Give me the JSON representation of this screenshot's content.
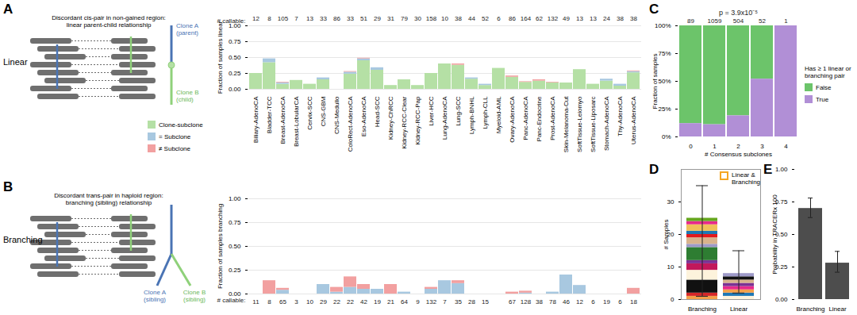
{
  "chart_data": [
    {
      "panel": "A",
      "type": "bar",
      "stacked": true,
      "diagram": {
        "label": "Linear",
        "caption": "Discordant cis-pair in non-gained region: linear parent-child relationship",
        "clones": [
          "Clone A (parent)",
          "Clone B (child)"
        ]
      },
      "ylabel": "Fraction of samples linear",
      "categories": [
        "Biliary-AdenoCA",
        "Bladder-TCC",
        "Breast-AdenoCA",
        "Breast-LobularCA",
        "Cervix-SCC",
        "CNS-GBM",
        "CNS-Medullo",
        "ColoRect-AdenoCA",
        "Eso-AdenoCA",
        "Head-SCC",
        "Kidney-ChRCC",
        "Kidney-RCC-Clear",
        "Kidney-RCC-Pap",
        "Liver-HCC",
        "Lung-AdenoCA",
        "Lung-SCC",
        "Lymph-BNHL",
        "Lymph-CLL",
        "Myeloid-AML",
        "Ovary-AdenoCA",
        "Panc-AdenoCA",
        "Panc-Endocrine",
        "Prost-AdenoCA",
        "Skin-Melanoma-Cut",
        "SoftTissue-Leiomyo",
        "SoftTissue-Liposarc",
        "Stomach-AdenoCA",
        "Thy-AdenoCA",
        "Uterus-AdenoCA"
      ],
      "series": [
        {
          "name": "Clone-subclone",
          "color": "#b5e0a5",
          "values": [
            0.25,
            0.42,
            0.08,
            0.14,
            0.08,
            0.15,
            0,
            0.24,
            0.45,
            0.3,
            0.06,
            0.15,
            0.06,
            0.25,
            0.4,
            0.38,
            0.16,
            0.06,
            0.33,
            0.19,
            0.11,
            0.13,
            0.1,
            0.1,
            0.31,
            0.08,
            0.13,
            0.05,
            0.26
          ]
        },
        {
          "name": "= Subclone",
          "color": "#a8c8e0",
          "values": [
            0,
            0.06,
            0.02,
            0,
            0,
            0.03,
            0,
            0.03,
            0.03,
            0.04,
            0,
            0,
            0,
            0,
            0,
            0,
            0.02,
            0.02,
            0,
            0,
            0,
            0,
            0,
            0,
            0,
            0,
            0.03,
            0.03,
            0.02
          ]
        },
        {
          "name": "≠ Subclone",
          "color": "#f2a0a0",
          "values": [
            0,
            0,
            0.01,
            0,
            0,
            0,
            0,
            0.01,
            0.01,
            0,
            0,
            0,
            0,
            0,
            0,
            0.02,
            0,
            0,
            0,
            0.02,
            0.01,
            0.02,
            0.01,
            0,
            0,
            0,
            0,
            0,
            0.01
          ]
        }
      ],
      "callable_label": "# callable:",
      "callable": [
        12,
        8,
        105,
        7,
        13,
        33,
        86,
        33,
        51,
        29,
        31,
        79,
        30,
        158,
        10,
        38,
        44,
        52,
        6,
        86,
        164,
        62,
        132,
        49,
        13,
        13,
        24,
        38,
        38
      ],
      "ylim": [
        0,
        1
      ],
      "yticks": [
        {
          "value": 0,
          "label": "0.00"
        },
        {
          "value": 0.25,
          "label": "0.25"
        },
        {
          "value": 0.5,
          "label": "0.50"
        },
        {
          "value": 0.75,
          "label": "0.75"
        },
        {
          "value": 1,
          "label": "1.00"
        }
      ]
    },
    {
      "panel": "B",
      "type": "bar",
      "stacked": true,
      "tick_labels": "y",
      "diagram": {
        "label": "Branching",
        "caption": "Discordant trans-pair in haploid region: branching (sibling) relationship",
        "clones": [
          "Clone A (sibling)",
          "Clone B (sibling)"
        ]
      },
      "ylabel": "Fraction of samples branching",
      "categories": [
        "Biliary-AdenoCA",
        "Bladder-TCC",
        "Breast-AdenoCA",
        "Breast-LobularCA",
        "Cervix-SCC",
        "CNS-GBM",
        "CNS-Medullo",
        "ColoRect-AdenoCA",
        "Eso-AdenoCA",
        "Head-SCC",
        "Kidney-ChRCC",
        "Kidney-RCC-Clear",
        "Kidney-RCC-Pap",
        "Liver-HCC",
        "Lung-AdenoCA",
        "Lung-SCC",
        "Lymph-BNHL",
        "Lymph-CLL",
        "Myeloid-AML",
        "Ovary-AdenoCA",
        "Panc-AdenoCA",
        "Panc-Endocrine",
        "Prost-AdenoCA",
        "Skin-Melanoma-Cut",
        "SoftTissue-Leiomyo",
        "SoftTissue-Liposarc",
        "Stomach-AdenoCA",
        "Thy-AdenoCA",
        "Uterus-AdenoCA"
      ],
      "series": [
        {
          "name": "Clone-subclone",
          "color": "#b5e0a5",
          "values": [
            0,
            0,
            0,
            0,
            0,
            0,
            0,
            0,
            0,
            0,
            0,
            0,
            0,
            0,
            0,
            0,
            0,
            0,
            null,
            0,
            0,
            0,
            0,
            0,
            0,
            0,
            0,
            0,
            0
          ]
        },
        {
          "name": "= Subclone",
          "color": "#a8c8e0",
          "values": [
            0,
            0,
            0.04,
            0,
            0,
            0.1,
            0.02,
            0.07,
            0.05,
            0.05,
            0,
            0.02,
            0,
            0.05,
            0.14,
            0.11,
            0,
            0,
            null,
            0,
            0.01,
            0,
            0.02,
            0.2,
            0.09,
            0,
            0,
            0,
            0
          ]
        },
        {
          "name": "≠ Subclone",
          "color": "#f2a0a0",
          "values": [
            0,
            0.14,
            0.02,
            0,
            0,
            0,
            0.05,
            0.11,
            0.05,
            0,
            0.1,
            0,
            0,
            0.02,
            0,
            0.03,
            0,
            0,
            null,
            0.02,
            0.02,
            0,
            0,
            0,
            0,
            0,
            0,
            0,
            0.06
          ]
        }
      ],
      "callable_label": "# callable:",
      "callable": [
        11,
        8,
        65,
        3,
        10,
        29,
        22,
        22,
        42,
        19,
        21,
        64,
        9,
        132,
        7,
        35,
        28,
        15,
        null,
        67,
        128,
        38,
        78,
        46,
        12,
        6,
        19,
        6,
        18
      ],
      "ylim": [
        0,
        1
      ],
      "yticks": [
        {
          "value": 0,
          "label": "0.00"
        },
        {
          "value": 0.25,
          "label": "0.25"
        },
        {
          "value": 0.5,
          "label": "0.50"
        },
        {
          "value": 0.75,
          "label": "0.75"
        },
        {
          "value": 1,
          "label": "1.00"
        }
      ]
    },
    {
      "panel": "C",
      "type": "bar",
      "stacked": true,
      "subtitle": "p = 3.9x10⁻⁵",
      "xlabel": "# Consensus subclones",
      "ylabel": "Fraction of samples",
      "categories": [
        0,
        1,
        2,
        3,
        4
      ],
      "n": [
        89,
        1059,
        504,
        52,
        1
      ],
      "legend_title": "Has ≥ 1 linear or branching pair",
      "series": [
        {
          "name": "False",
          "color": "#6cc46a",
          "values": [
            88,
            89,
            81,
            48,
            0
          ]
        },
        {
          "name": "True",
          "color": "#b18fd6",
          "values": [
            12,
            11,
            19,
            52,
            100
          ]
        }
      ],
      "ylim": [
        0,
        100
      ],
      "yticks": [
        {
          "value": 0,
          "label": "0%"
        },
        {
          "value": 25,
          "label": "25%"
        },
        {
          "value": 50,
          "label": "50%"
        },
        {
          "value": 75,
          "label": "75%"
        },
        {
          "value": 100,
          "label": "100%"
        }
      ]
    },
    {
      "panel": "D",
      "type": "bar",
      "stacked": true,
      "ylabel": "# Samples",
      "annotation": "Linear & Branching",
      "annotation_color": "#f5a623",
      "categories": [
        "Branching",
        "Linear"
      ],
      "stacks": [
        [
          {
            "color": "#f4a04a",
            "value": 1
          },
          {
            "color": "#d62728",
            "value": 1
          },
          {
            "color": "#111111",
            "value": 4
          },
          {
            "color": "#fdf3dc",
            "value": 3
          },
          {
            "color": "#c2185b",
            "value": 2
          },
          {
            "color": "#7b3294",
            "value": 1
          },
          {
            "color": "#2e7d32",
            "value": 4
          },
          {
            "color": "#9e9ac8",
            "value": 1
          },
          {
            "color": "#d9b38c",
            "value": 2
          },
          {
            "color": "#e41a1c",
            "value": 1
          },
          {
            "color": "#1f78b4",
            "value": 1
          },
          {
            "color": "#f0c05a",
            "value": 2
          },
          {
            "color": "#e7298a",
            "value": 1
          },
          {
            "color": "#66a61e",
            "value": 1
          }
        ],
        [
          {
            "color": "#fdf3dc",
            "value": 1
          },
          {
            "color": "#1f78b4",
            "value": 1
          },
          {
            "color": "#f4a04a",
            "value": 1
          },
          {
            "color": "#e7298a",
            "value": 1
          },
          {
            "color": "#7b3294",
            "value": 1
          },
          {
            "color": "#d9b38c",
            "value": 1
          },
          {
            "color": "#111111",
            "value": 1
          },
          {
            "color": "#9e9ac8",
            "value": 1
          }
        ]
      ],
      "error_low": [
        1,
        2
      ],
      "error_high": [
        35,
        15
      ],
      "ylim": [
        0,
        40
      ],
      "yticks": [
        0,
        10,
        20,
        30
      ]
    },
    {
      "panel": "E",
      "type": "bar",
      "ylabel": "Probability in TRACERx 100",
      "categories": [
        "Branching",
        "Linear"
      ],
      "values": [
        0.7,
        0.28
      ],
      "error_low": [
        0.63,
        0.21
      ],
      "error_high": [
        0.78,
        0.37
      ],
      "color": "#4d4d4d",
      "ylim": [
        0,
        1
      ],
      "yticks": [
        {
          "value": 0,
          "label": "0.00"
        },
        {
          "value": 0.25,
          "label": "0.25"
        },
        {
          "value": 0.5,
          "label": "0.50"
        },
        {
          "value": 0.75,
          "label": "0.75"
        },
        {
          "value": 1,
          "label": "1.00"
        }
      ]
    }
  ]
}
